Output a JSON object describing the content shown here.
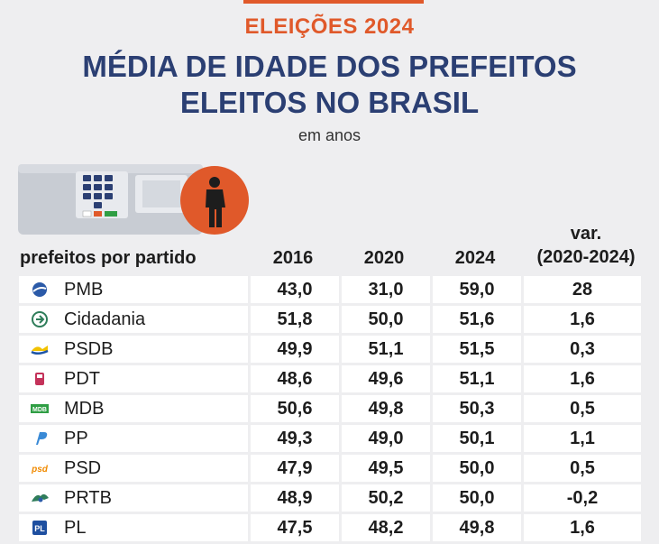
{
  "header": {
    "kicker": "ELEIÇÕES 2024",
    "title_line1": "MÉDIA DE IDADE DOS PREFEITOS",
    "title_line2": "ELEITOS NO BRASIL",
    "subtitle": "em anos"
  },
  "colors": {
    "accent": "#e0592a",
    "title": "#2b3f73",
    "background": "#eeeef0"
  },
  "chart_data": {
    "type": "table",
    "columns": [
      "prefeitos por partido",
      "2016",
      "2020",
      "2024",
      "var.",
      "(2020-2024)"
    ],
    "rows": [
      {
        "party": "PMB",
        "logo": "pmb-logo-icon",
        "v2016": "43,0",
        "v2020": "31,0",
        "v2024": "59,0",
        "var": "28"
      },
      {
        "party": "Cidadania",
        "logo": "cidadania-logo-icon",
        "v2016": "51,8",
        "v2020": "50,0",
        "v2024": "51,6",
        "var": "1,6"
      },
      {
        "party": "PSDB",
        "logo": "psdb-logo-icon",
        "v2016": "49,9",
        "v2020": "51,1",
        "v2024": "51,5",
        "var": "0,3"
      },
      {
        "party": "PDT",
        "logo": "pdt-logo-icon",
        "v2016": "48,6",
        "v2020": "49,6",
        "v2024": "51,1",
        "var": "1,6"
      },
      {
        "party": "MDB",
        "logo": "mdb-logo-icon",
        "v2016": "50,6",
        "v2020": "49,8",
        "v2024": "50,3",
        "var": "0,5"
      },
      {
        "party": "PP",
        "logo": "pp-logo-icon",
        "v2016": "49,3",
        "v2020": "49,0",
        "v2024": "50,1",
        "var": "1,1"
      },
      {
        "party": "PSD",
        "logo": "psd-logo-icon",
        "v2016": "47,9",
        "v2020": "49,5",
        "v2024": "50,0",
        "var": "0,5"
      },
      {
        "party": "PRTB",
        "logo": "prtb-logo-icon",
        "v2016": "48,9",
        "v2020": "50,2",
        "v2024": "50,0",
        "var": "-0,2"
      },
      {
        "party": "PL",
        "logo": "pl-logo-icon",
        "v2016": "47,5",
        "v2020": "48,2",
        "v2024": "49,8",
        "var": "1,6"
      }
    ]
  }
}
